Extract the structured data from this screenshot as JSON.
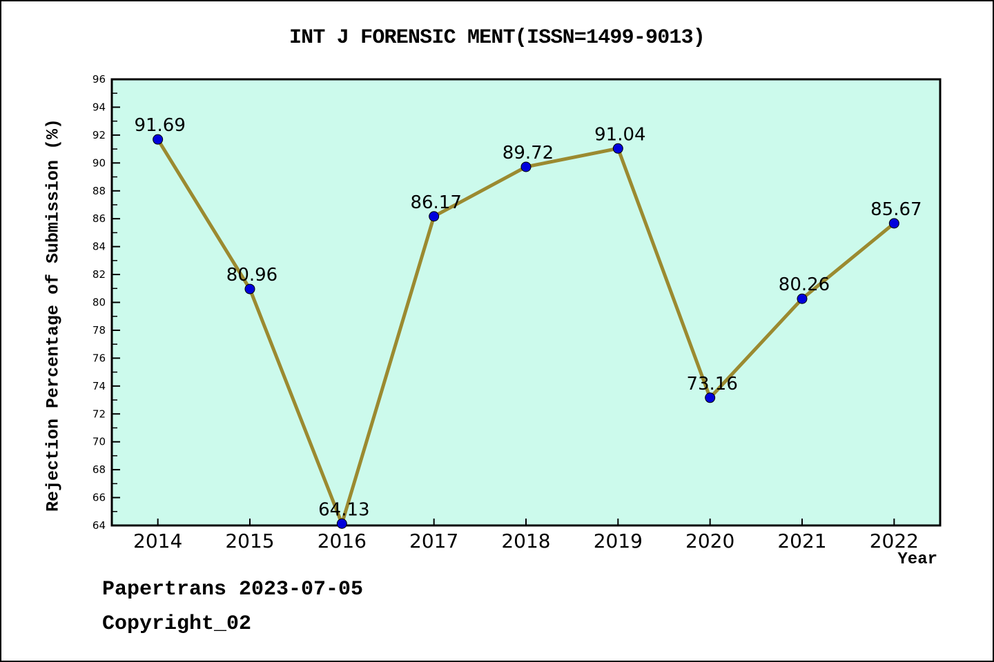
{
  "title": "INT J FORENSIC MENT(ISSN=1499-9013)",
  "footer": {
    "line1": "Papertrans 2023-07-05",
    "line2": "Copyright_02"
  },
  "chart_data": {
    "type": "line",
    "title": "INT J FORENSIC MENT(ISSN=1499-9013)",
    "xlabel": "Year",
    "ylabel": "Rejection Percentage of Submission (%)",
    "x": [
      2014,
      2015,
      2016,
      2017,
      2018,
      2019,
      2020,
      2021,
      2022
    ],
    "values": [
      91.69,
      80.96,
      64.13,
      86.17,
      89.72,
      91.04,
      73.16,
      80.26,
      85.67
    ],
    "point_labels": [
      "91.69",
      "80.96",
      "64.13",
      "86.17",
      "89.72",
      "91.04",
      "73.16",
      "80.26",
      "85.67"
    ],
    "ylim": [
      64,
      96
    ],
    "xlim": [
      2013.5,
      2022.5
    ],
    "y_major_step": 2,
    "y_minor_step": 1,
    "grid": false,
    "legend": null,
    "colors": {
      "line": "#9B8A30",
      "marker_fill": "#0101DC",
      "marker_edge": "#000000",
      "plot_bg": "#CCFAEC",
      "spine": "#000000",
      "text": "#000000"
    }
  }
}
